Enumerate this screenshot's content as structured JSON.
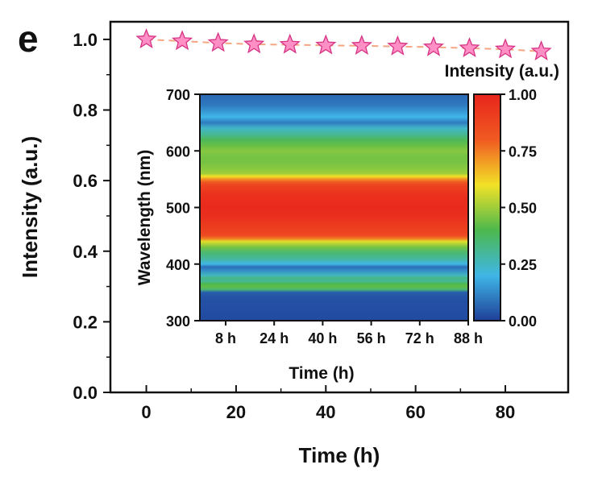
{
  "panel_label": "e",
  "chart_data": [
    {
      "type": "line",
      "xlabel": "Time (h)",
      "ylabel": "Intensity (a.u.)",
      "xlim": [
        -8,
        94
      ],
      "ylim": [
        0.0,
        1.05
      ],
      "xticks": [
        0,
        20,
        40,
        60,
        80
      ],
      "xtick_labels": [
        "0",
        "20",
        "40",
        "60",
        "80"
      ],
      "yticks": [
        0.0,
        0.2,
        0.4,
        0.6,
        0.8,
        1.0
      ],
      "ytick_labels": [
        "0.0",
        "0.2",
        "0.4",
        "0.6",
        "0.8",
        "1.0"
      ],
      "grid": false,
      "series": [
        {
          "marker": "star",
          "color": "#ff8fc4",
          "line_color": "#f4a582",
          "x": [
            0,
            8,
            16,
            24,
            32,
            40,
            48,
            56,
            64,
            72,
            80,
            88
          ],
          "y": [
            1.0,
            0.995,
            0.99,
            0.986,
            0.985,
            0.983,
            0.982,
            0.98,
            0.978,
            0.975,
            0.972,
            0.966
          ]
        }
      ]
    },
    {
      "type": "heatmap",
      "xlabel": "Time (h)",
      "ylabel": "Wavelength (nm)",
      "xtick_labels": [
        "8 h",
        "24 h",
        "40 h",
        "56 h",
        "72 h",
        "88 h"
      ],
      "ylim": [
        300,
        700
      ],
      "yticks": [
        300,
        400,
        500,
        600,
        700
      ],
      "ytick_labels": [
        "300",
        "400",
        "500",
        "600",
        "700"
      ],
      "colorbar": {
        "label": "Intensity (a.u.)",
        "range": [
          0.0,
          1.0
        ],
        "tick_labels": [
          "0.00",
          "0.25",
          "0.50",
          "0.75",
          "1.00"
        ],
        "colors": [
          "#1f3f99",
          "#3fb6e6",
          "#4db84d",
          "#f2e227",
          "#f05a22",
          "#e8251c"
        ]
      },
      "profile_wavelengths": [
        300,
        340,
        350,
        355,
        360,
        365,
        370,
        375,
        380,
        390,
        395,
        400,
        410,
        420,
        430,
        440,
        445,
        450,
        455,
        460,
        470,
        480,
        490,
        500,
        510,
        520,
        530,
        540,
        545,
        550,
        555,
        560,
        570,
        580,
        590,
        600,
        610,
        620,
        630,
        640,
        650,
        660,
        670,
        680,
        690,
        700
      ],
      "profile_intensity": [
        0.02,
        0.03,
        0.05,
        0.35,
        0.42,
        0.4,
        0.3,
        0.33,
        0.25,
        0.12,
        0.08,
        0.2,
        0.3,
        0.35,
        0.45,
        0.58,
        0.75,
        0.85,
        0.88,
        0.9,
        0.92,
        0.95,
        0.97,
        0.98,
        0.97,
        0.96,
        0.93,
        0.88,
        0.8,
        0.72,
        0.6,
        0.5,
        0.47,
        0.45,
        0.45,
        0.47,
        0.43,
        0.38,
        0.3,
        0.24,
        0.1,
        0.2,
        0.15,
        0.1,
        0.08,
        0.07
      ]
    }
  ]
}
